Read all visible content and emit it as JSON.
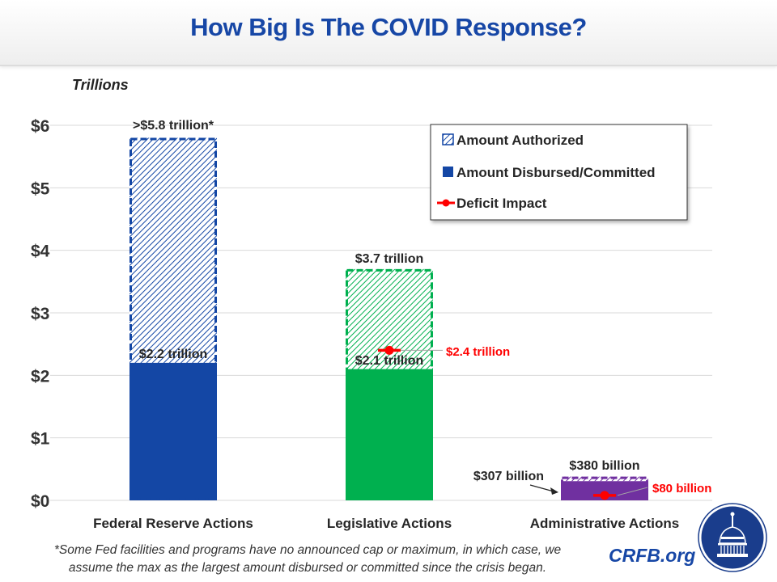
{
  "header": {
    "title": "How Big Is The COVID Response?"
  },
  "chart_data": {
    "type": "bar",
    "title": "How Big Is The COVID Response?",
    "ylabel": "Trillions",
    "xlabel": "",
    "ylim": [
      0,
      6
    ],
    "yticks": [
      0,
      1,
      2,
      3,
      4,
      5,
      6
    ],
    "ytick_labels": [
      "$0",
      "$1",
      "$2",
      "$3",
      "$4",
      "$5",
      "$6"
    ],
    "grid": true,
    "categories": [
      "Federal Reserve Actions",
      "Legislative Actions",
      "Administrative Actions"
    ],
    "colors": [
      "#1447a5",
      "#00b04f",
      "#7030a0"
    ],
    "series": [
      {
        "name": "Amount Authorized",
        "style": "hatched",
        "values": [
          5.8,
          3.7,
          0.38
        ],
        "labels": [
          ">$5.8 trillion*",
          "$3.7 trillion",
          "$380 billion"
        ]
      },
      {
        "name": "Amount Disbursed/Committed",
        "style": "solid",
        "values": [
          2.2,
          2.1,
          0.307
        ],
        "labels": [
          "$2.2 trillion",
          "$2.1 trillion",
          "$307 billion"
        ]
      },
      {
        "name": "Deficit Impact",
        "style": "marker",
        "color": "#ff0000",
        "values": [
          null,
          2.4,
          0.08
        ],
        "labels": [
          "",
          "$2.4 trillion",
          "$80 billion"
        ]
      }
    ],
    "legend": {
      "placement": "top-right",
      "entries": [
        "Amount Authorized",
        "Amount Disbursed/Committed",
        "Deficit Impact"
      ]
    }
  },
  "footer": {
    "footnote_line1": "*Some Fed facilities and programs have no announced cap or maximum, in which case, we",
    "footnote_line2": "assume the max as the largest amount disbursed or committed since the crisis began.",
    "brand": "CRFB.org"
  }
}
